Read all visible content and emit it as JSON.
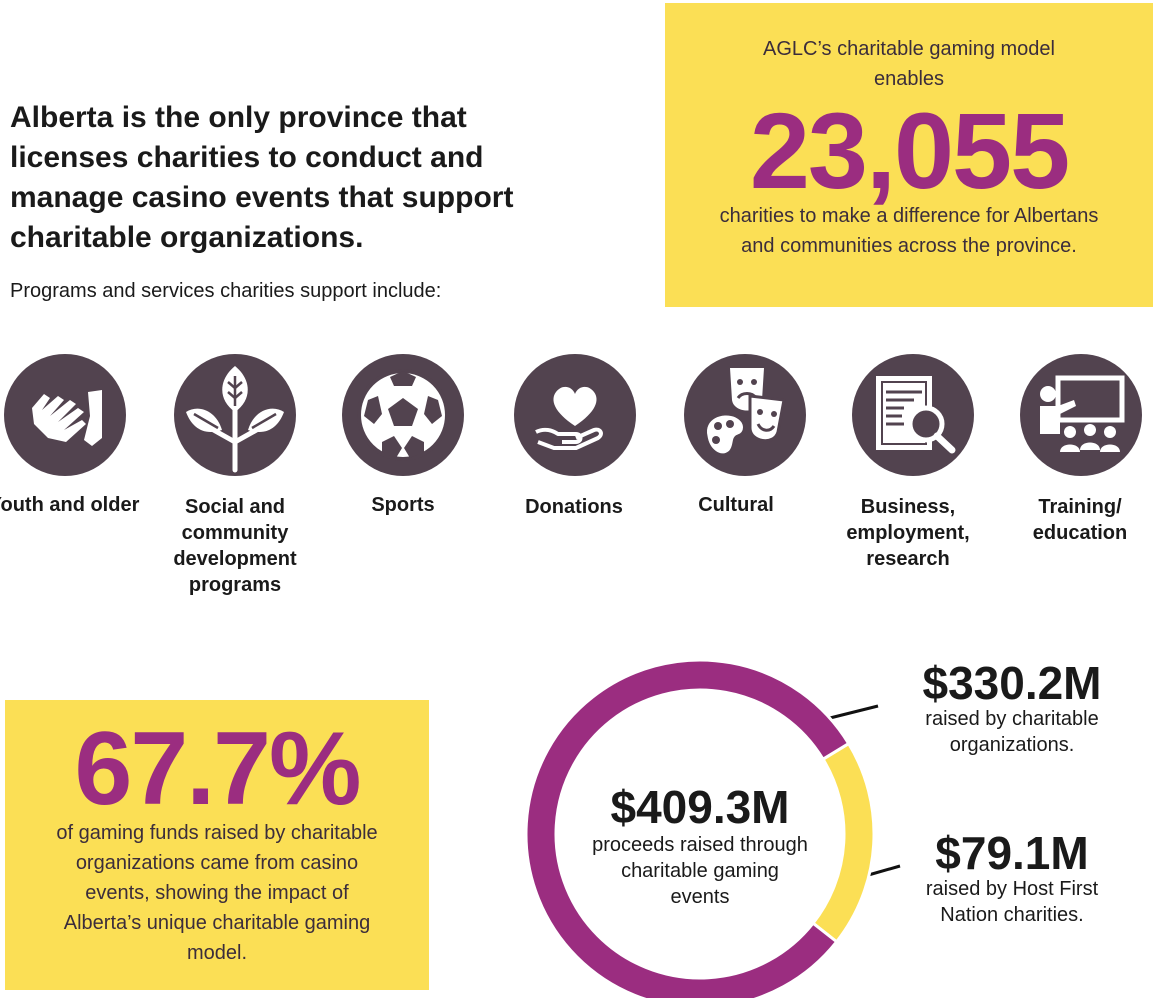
{
  "headline": "Alberta is the only province that licenses charities to conduct and manage casino events that support charitable organizations.",
  "subline": "Programs and services charities support include:",
  "top_box": {
    "pre": "AGLC’s charitable gaming model enables",
    "number": "23,055",
    "post": "charities to make a difference for Albertans and communities across the province."
  },
  "left_box": {
    "number": "67.7%",
    "post": "of gaming funds raised by charitable organizations came from casino events, showing the impact of Alberta’s unique charitable gaming model."
  },
  "categories": [
    {
      "icon": "handshake-icon",
      "label": "Youth and older"
    },
    {
      "icon": "plant-icon",
      "label": "Social and community development programs"
    },
    {
      "icon": "soccer-ball-icon",
      "label": "Sports"
    },
    {
      "icon": "heart-in-hand-icon",
      "label": "Donations"
    },
    {
      "icon": "theatre-masks-palette-icon",
      "label": "Cultural"
    },
    {
      "icon": "document-magnifier-icon",
      "label": "Business, employment, research"
    },
    {
      "icon": "presentation-board-icon",
      "label": "Training/ education"
    }
  ],
  "colors": {
    "yellow": "#fbdf55",
    "purple": "#9b2d80",
    "icon_bg": "#52434f"
  },
  "chart_data": {
    "type": "pie",
    "subtype": "donut",
    "total": {
      "value": 409.3,
      "display": "$409.3M",
      "label": "proceeds raised through charitable gaming events"
    },
    "series": [
      {
        "name": "raised by charitable organizations.",
        "value": 330.2,
        "display": "$330.2M",
        "color": "#9b2d80"
      },
      {
        "name": "raised by Host First Nation charities.",
        "value": 79.1,
        "display": "$79.1M",
        "color": "#fbdf55"
      }
    ]
  }
}
